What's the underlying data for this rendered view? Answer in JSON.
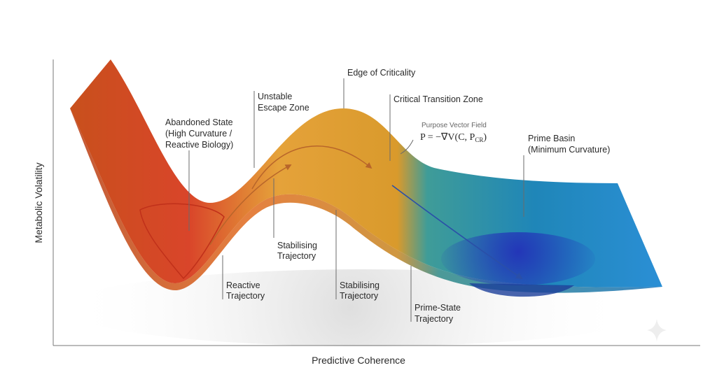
{
  "axes": {
    "y_label": "Metabolic Volatility",
    "x_label": "Predictive Coherence"
  },
  "annotations": {
    "edge_of_criticality": {
      "lines": [
        "Edge of Criticality"
      ]
    },
    "unstable_escape_zone": {
      "lines": [
        "Unstable",
        "Escape Zone"
      ]
    },
    "critical_transition_zone": {
      "lines": [
        "Critical Transition Zone"
      ]
    },
    "purpose_vector_field": {
      "lines": [
        "Purpose Vector Field"
      ],
      "formula": {
        "main": "P = −∇V(C, P",
        "sub": "CR",
        "close": ")"
      }
    },
    "abandoned_state": {
      "lines": [
        "Abandoned State",
        "(High Curvature /",
        "Reactive Biology)"
      ]
    },
    "prime_basin": {
      "lines": [
        "Prime Basin",
        "(Minimum Curvature)"
      ]
    },
    "stabilising_trajectory_upper": {
      "lines": [
        "Stabilising",
        "Trajectory"
      ]
    },
    "reactive_trajectory": {
      "lines": [
        "Reactive",
        "Trajectory"
      ]
    },
    "stabilising_trajectory_lower": {
      "lines": [
        "Stabilising",
        "Trajectory"
      ]
    },
    "prime_state_trajectory": {
      "lines": [
        "Prime-State",
        "Trajectory"
      ]
    }
  }
}
